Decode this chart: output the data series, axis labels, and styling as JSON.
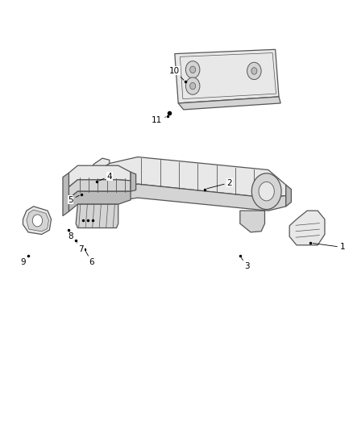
{
  "bg_color": "#ffffff",
  "line_color": "#555555",
  "fill_light": "#e8e8e8",
  "fill_mid": "#d4d4d4",
  "fill_dark": "#bbbbbb",
  "figsize": [
    4.38,
    5.33
  ],
  "dpi": 100,
  "label_positions": {
    "1": {
      "text": [
        0.97,
        0.425
      ],
      "pt": [
        0.88,
        0.435
      ]
    },
    "2": {
      "text": [
        0.65,
        0.575
      ],
      "pt": [
        0.58,
        0.56
      ]
    },
    "3": {
      "text": [
        0.7,
        0.38
      ],
      "pt": [
        0.68,
        0.405
      ]
    },
    "4": {
      "text": [
        0.31,
        0.59
      ],
      "pt": [
        0.275,
        0.578
      ]
    },
    "5": {
      "text": [
        0.2,
        0.535
      ],
      "pt": [
        0.23,
        0.548
      ]
    },
    "6": {
      "text": [
        0.26,
        0.39
      ],
      "pt": [
        0.24,
        0.42
      ]
    },
    "7": {
      "text": [
        0.23,
        0.42
      ],
      "pt": [
        0.215,
        0.44
      ]
    },
    "8": {
      "text": [
        0.2,
        0.45
      ],
      "pt": [
        0.195,
        0.465
      ]
    },
    "9": {
      "text": [
        0.065,
        0.39
      ],
      "pt": [
        0.08,
        0.405
      ]
    },
    "10": {
      "text": [
        0.495,
        0.835
      ],
      "pt": [
        0.525,
        0.81
      ]
    },
    "11": {
      "text": [
        0.445,
        0.72
      ],
      "pt": [
        0.475,
        0.73
      ]
    }
  }
}
